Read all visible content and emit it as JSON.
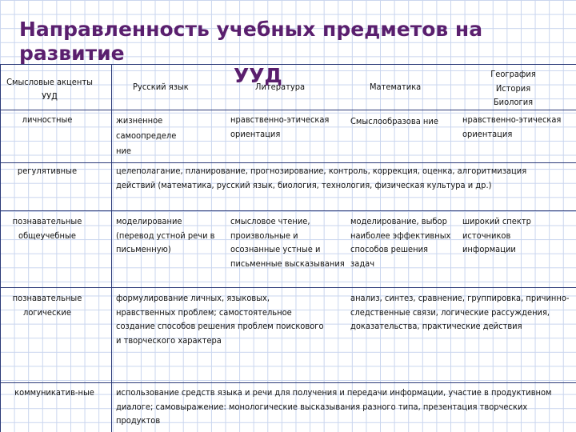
{
  "title": "Направленность учебных предметов на развитие",
  "title_tail": "УУД",
  "header": {
    "c0": "Смысловые акценты УУД",
    "c1": "Русский язык",
    "c2": "Литература",
    "c3": "Математика",
    "c4": "География История Биология"
  },
  "rows": [
    {
      "label": "личностные",
      "c1": "жизненное самоопределе ние",
      "c2": "нравственно-этическая ориентация",
      "c3": "Смыслообразова ние",
      "c4": "нравственно-этическая ориентация"
    },
    {
      "label": "регулятивные",
      "span": "целеполагание, планирование, прогнозирование, контроль, коррекция, оценка, алгоритмизация действий (математика, русский язык, биология,  технология, физическая культура и др.)"
    },
    {
      "label": "познавательные общеучебные",
      "c1": "моделирование (перевод устной речи в письменную)",
      "c2": "смысловое чтение, произвольные и осознанные устные и письменные высказывания",
      "c3": "моделирование, выбор наиболее эффективных способов решения задач",
      "c4": "широкий спектр источников информации"
    },
    {
      "label": "познавательные логические",
      "c12": "формулирование личных, языковых, нравственных проблем; самостоятельное создание способов решения проблем поискового и творческого характера",
      "c34": "анализ, синтез, сравнение, группировка, причинно-следственные связи, логические рассуждения, доказательства, практические действия"
    },
    {
      "label": "коммуникатив-ные",
      "span": "использование средств языка и речи для получения и передачи информации, участие в продуктивном диалоге; самовыражение:  монологические высказывания разного типа, презентация творческих продуктов"
    }
  ]
}
